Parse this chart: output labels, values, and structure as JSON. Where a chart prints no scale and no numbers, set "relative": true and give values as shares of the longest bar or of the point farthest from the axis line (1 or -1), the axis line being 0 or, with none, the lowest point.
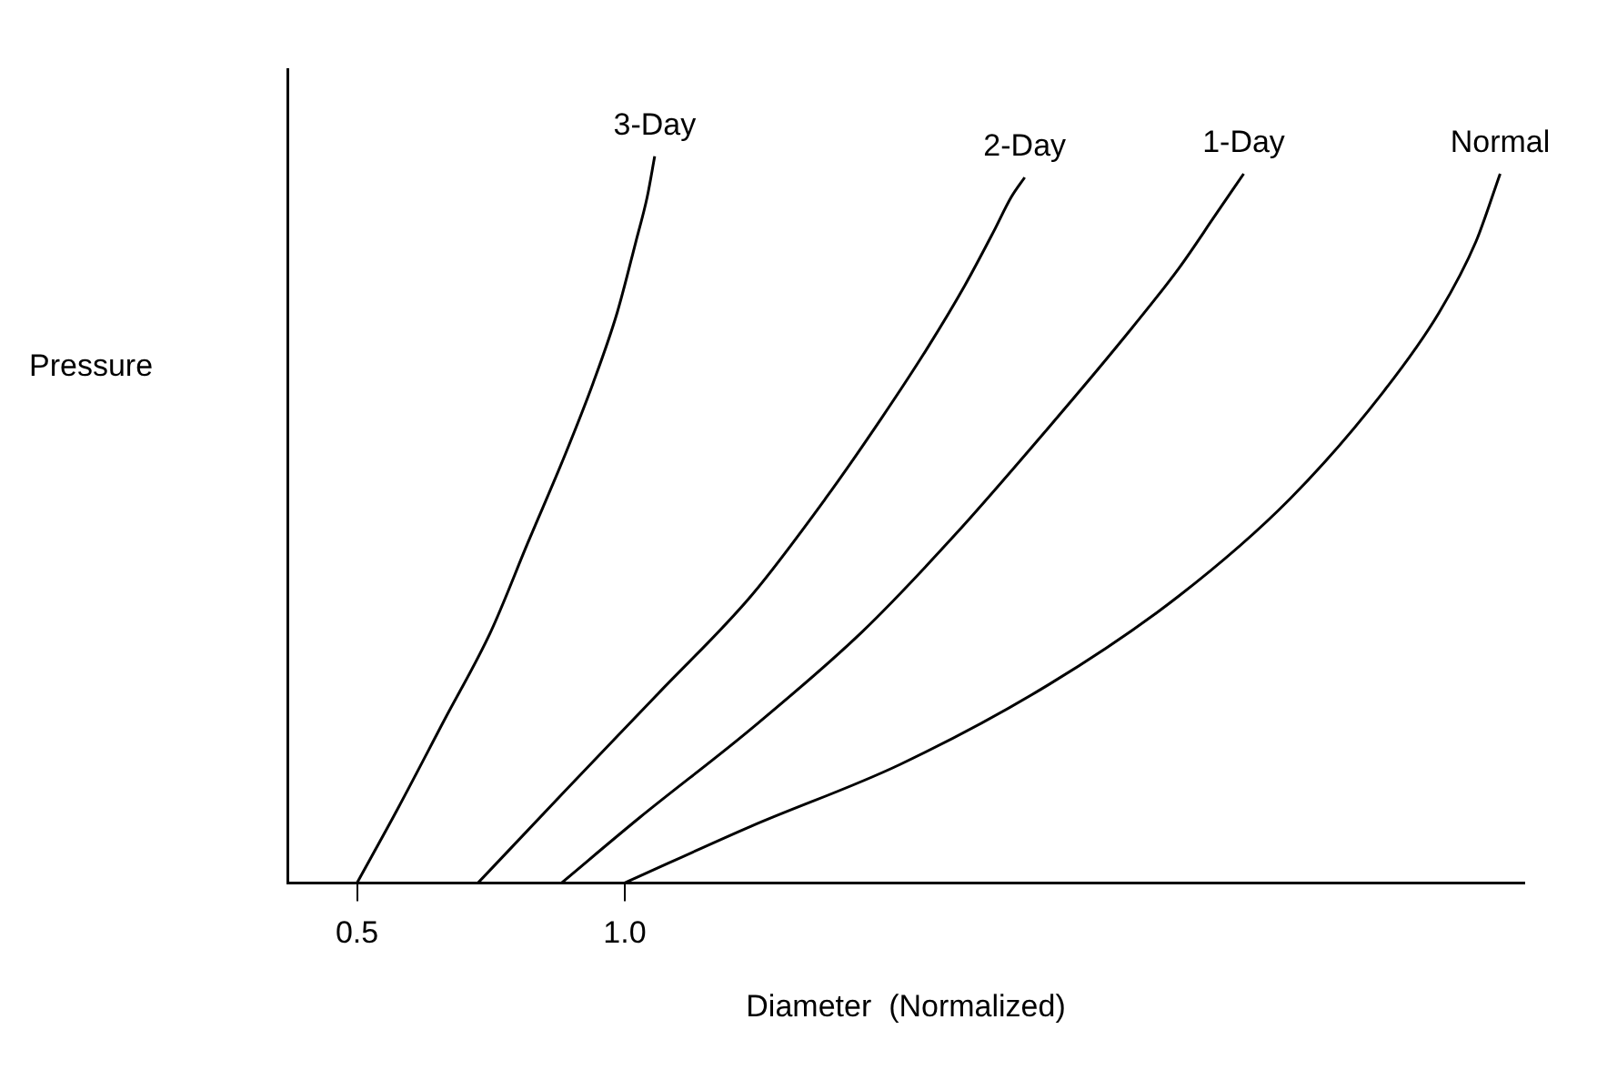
{
  "chart_data": {
    "type": "line",
    "xlabel": "Diameter  (Normalized)",
    "ylabel": "Pressure",
    "relative": true,
    "xlim": [
      0.37,
      2.68
    ],
    "xticks": [
      0.5,
      {
        "value": 1,
        "label": "1.0"
      }
    ],
    "grid": false,
    "legend": false,
    "marker": "none",
    "line_style": "solid",
    "series": [
      {
        "name": "3-Day",
        "color": "#000000",
        "x": [
          0.5,
          0.576,
          0.663,
          0.75,
          0.819,
          0.889,
          0.941,
          0.986,
          1.021,
          1.042,
          1.056
        ],
        "values": [
          0,
          0.102,
          0.224,
          0.346,
          0.468,
          0.59,
          0.688,
          0.785,
          0.883,
          0.944,
          1
        ]
      },
      {
        "name": "2-Day",
        "color": "#000000",
        "x": [
          0.726,
          0.889,
          1.063,
          1.236,
          1.375,
          1.479,
          1.566,
          1.635,
          1.688,
          1.722,
          1.747
        ],
        "values": [
          0,
          0.127,
          0.261,
          0.395,
          0.529,
          0.639,
          0.737,
          0.822,
          0.895,
          0.944,
          0.971
        ]
      },
      {
        "name": "1-Day",
        "color": "#000000",
        "x": [
          0.882,
          1.028,
          1.236,
          1.444,
          1.618,
          1.792,
          1.931,
          2.035,
          2.104,
          2.156
        ],
        "values": [
          0,
          0.09,
          0.212,
          0.346,
          0.48,
          0.627,
          0.749,
          0.846,
          0.92,
          0.976
        ]
      },
      {
        "name": "Normal",
        "color": "#000000",
        "x": [
          1,
          1.236,
          1.514,
          1.792,
          2.035,
          2.243,
          2.417,
          2.521,
          2.59,
          2.635
        ],
        "values": [
          0,
          0.078,
          0.163,
          0.273,
          0.395,
          0.529,
          0.676,
          0.785,
          0.883,
          0.976
        ]
      }
    ]
  }
}
